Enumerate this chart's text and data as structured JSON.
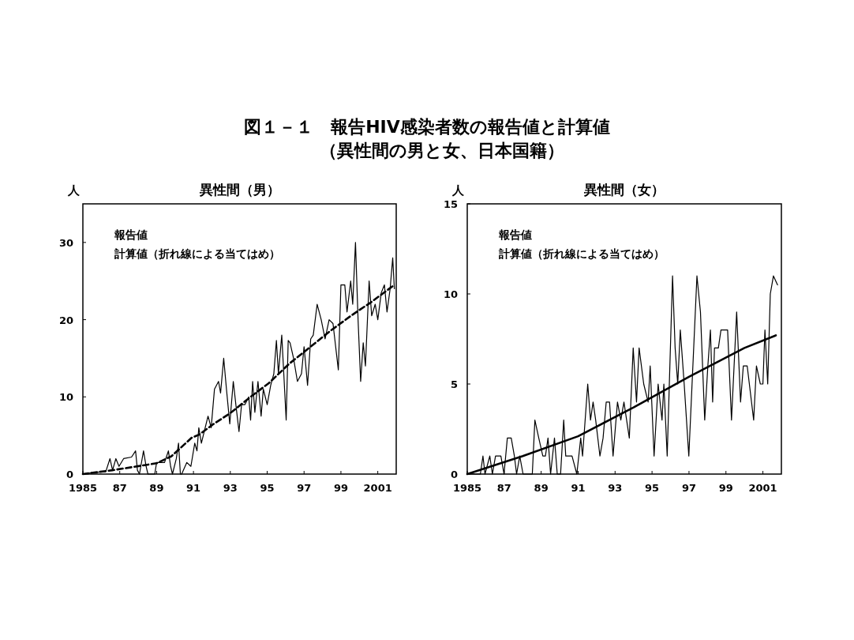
{
  "chart_data": [
    {
      "type": "other",
      "title": "図１－１　報告HIV感染者数の報告値と計算値",
      "subtitle": "（異性間の男と女、日本国籍）"
    },
    {
      "type": "line",
      "title": "異性間（男）",
      "ylabel": "人",
      "xlim": [
        1985,
        2002
      ],
      "ylim": [
        0,
        35
      ],
      "xticks": [
        {
          "value": 1985,
          "label": "1985"
        },
        {
          "value": 1987,
          "label": "87"
        },
        {
          "value": 1989,
          "label": "89"
        },
        {
          "value": 1991,
          "label": "91"
        },
        {
          "value": 1993,
          "label": "93"
        },
        {
          "value": 1995,
          "label": "95"
        },
        {
          "value": 1997,
          "label": "97"
        },
        {
          "value": 1999,
          "label": "99"
        },
        {
          "value": 2001,
          "label": "2001"
        }
      ],
      "yticks": [
        0,
        10,
        20,
        30
      ],
      "annotations": [
        "報告値",
        "計算値（折れ線による当てはめ）"
      ],
      "series": [
        {
          "color": "#000000",
          "line_style": "solid",
          "x": [
            1985.0,
            1985.5,
            1986.14,
            1986.24,
            1986.47,
            1986.61,
            1986.79,
            1986.96,
            1987.21,
            1987.64,
            1987.86,
            1987.96,
            1988.07,
            1988.29,
            1988.43,
            1988.53,
            1988.9,
            1989.0,
            1989.43,
            1989.64,
            1989.76,
            1989.86,
            1990.07,
            1990.19,
            1990.29,
            1990.36,
            1990.64,
            1990.86,
            1991.07,
            1991.19,
            1991.29,
            1991.43,
            1991.79,
            1991.96,
            1992.14,
            1992.36,
            1992.47,
            1992.64,
            1992.79,
            1992.97,
            1993.16,
            1993.3,
            1993.47,
            1993.61,
            1993.79,
            1994.0,
            1994.1,
            1994.21,
            1994.33,
            1994.5,
            1994.67,
            1994.79,
            1995.0,
            1995.19,
            1995.36,
            1995.5,
            1995.61,
            1995.79,
            1995.9,
            1996.03,
            1996.14,
            1996.24,
            1996.43,
            1996.64,
            1996.86,
            1997.0,
            1997.19,
            1997.36,
            1997.5,
            1997.71,
            1997.93,
            1998.14,
            1998.36,
            1998.57,
            1998.86,
            1999.0,
            1999.21,
            1999.33,
            1999.53,
            1999.64,
            1999.79,
            1999.93,
            2000.07,
            2000.21,
            2000.33,
            2000.53,
            2000.67,
            2000.86,
            2001.0,
            2001.19,
            2001.36,
            2001.5,
            2001.67,
            2001.81,
            2001.9
          ],
          "values": [
            0,
            0.2,
            0.3,
            0.3,
            2,
            0.5,
            2,
            1,
            2,
            2.2,
            3,
            0.5,
            0,
            3,
            1,
            0,
            0,
            1.5,
            1.5,
            3,
            1,
            0,
            2,
            4,
            0,
            0,
            1.5,
            1,
            4,
            3,
            6,
            4,
            7.5,
            6,
            11,
            12,
            10.5,
            15,
            11,
            6.5,
            12,
            9,
            5.5,
            9,
            9,
            10,
            7,
            12,
            8,
            12,
            7.5,
            11,
            9,
            11.5,
            13,
            17.3,
            13,
            18,
            13,
            7,
            17.3,
            17,
            15,
            12,
            13,
            16.5,
            11.5,
            17.5,
            18,
            22,
            20,
            17.5,
            20,
            19.5,
            13.5,
            24.5,
            24.5,
            21,
            25,
            22,
            30,
            20,
            12,
            17,
            14,
            25,
            20.5,
            22,
            20,
            23.5,
            24.5,
            21,
            24,
            28,
            24
          ]
        },
        {
          "color": "#000000",
          "line_style": "dashed",
          "x": [
            1985,
            1986.6,
            1989.0,
            1989.8,
            1990.9,
            1991.3,
            1992.1,
            1993.0,
            1994.1,
            1995.1,
            1996.2,
            1997.2,
            1998.4,
            1999.6,
            2000.6,
            2001.9
          ],
          "values": [
            0,
            0.5,
            1.4,
            2.3,
            4.7,
            5.1,
            6.5,
            7.9,
            10,
            11.8,
            14.3,
            16.2,
            18.5,
            20.6,
            22.2,
            24.5
          ]
        }
      ]
    },
    {
      "type": "line",
      "title": "異性間（女）",
      "ylabel": "人",
      "xlim": [
        1985,
        2002
      ],
      "ylim": [
        0,
        15
      ],
      "xticks": [
        {
          "value": 1985,
          "label": "1985"
        },
        {
          "value": 1987,
          "label": "87"
        },
        {
          "value": 1989,
          "label": "89"
        },
        {
          "value": 1991,
          "label": "91"
        },
        {
          "value": 1993,
          "label": "93"
        },
        {
          "value": 1995,
          "label": "95"
        },
        {
          "value": 1997,
          "label": "97"
        },
        {
          "value": 1999,
          "label": "99"
        },
        {
          "value": 2001,
          "label": "2001"
        }
      ],
      "yticks": [
        0,
        5,
        10,
        15
      ],
      "annotations": [
        "報告値",
        "計算値（折れ線による当てはめ）"
      ],
      "series": [
        {
          "color": "#000000",
          "line_style": "solid",
          "x": [
            1985.0,
            1985.4,
            1985.71,
            1985.85,
            1985.96,
            1986.22,
            1986.36,
            1986.53,
            1986.82,
            1986.99,
            1987.17,
            1987.38,
            1987.55,
            1987.67,
            1987.84,
            1988.02,
            1988.52,
            1988.66,
            1988.87,
            1989.09,
            1989.23,
            1989.37,
            1989.51,
            1989.72,
            1989.87,
            1990.05,
            1990.22,
            1990.33,
            1990.67,
            1990.93,
            1991.14,
            1991.24,
            1991.52,
            1991.67,
            1991.81,
            1991.95,
            1992.18,
            1992.35,
            1992.52,
            1992.7,
            1992.89,
            1993.13,
            1993.31,
            1993.48,
            1993.77,
            1993.98,
            1994.16,
            1994.3,
            1994.55,
            1994.79,
            1994.9,
            1995.11,
            1995.33,
            1995.54,
            1995.64,
            1995.82,
            1996.11,
            1996.25,
            1996.39,
            1996.53,
            1996.74,
            1996.99,
            1997.43,
            1997.62,
            1997.85,
            1998.02,
            1998.16,
            1998.28,
            1998.38,
            1998.59,
            1998.73,
            1999.09,
            1999.3,
            1999.58,
            1999.79,
            1999.94,
            2000.15,
            2000.5,
            2000.65,
            2000.86,
            2001.0,
            2001.11,
            2001.26,
            2001.4,
            2001.57,
            2001.79
          ],
          "values": [
            0,
            0,
            0,
            1,
            0,
            1,
            0,
            1,
            1,
            0,
            2,
            2,
            1,
            0,
            1,
            0,
            0,
            3,
            2,
            1,
            1,
            2,
            0,
            2,
            0,
            0,
            3,
            1,
            1,
            0,
            2,
            1,
            5,
            3,
            4,
            3,
            1,
            2,
            4,
            4,
            1,
            4,
            3,
            4,
            2,
            7,
            4,
            7,
            5,
            4,
            6,
            1,
            5,
            3,
            5,
            1,
            11,
            7,
            5,
            8,
            5,
            1,
            11,
            9,
            3,
            6,
            8,
            4,
            7,
            7,
            8,
            8,
            3,
            9,
            4,
            6,
            6,
            3,
            6,
            5,
            5,
            8,
            5,
            10,
            11,
            10.5
          ]
        },
        {
          "color": "#000000",
          "line_style": "solid",
          "x": [
            1985,
            1988,
            1991,
            1994,
            1997,
            2000,
            2001.7
          ],
          "values": [
            0,
            1.0,
            2.1,
            3.7,
            5.4,
            7.0,
            7.7
          ]
        }
      ]
    }
  ]
}
